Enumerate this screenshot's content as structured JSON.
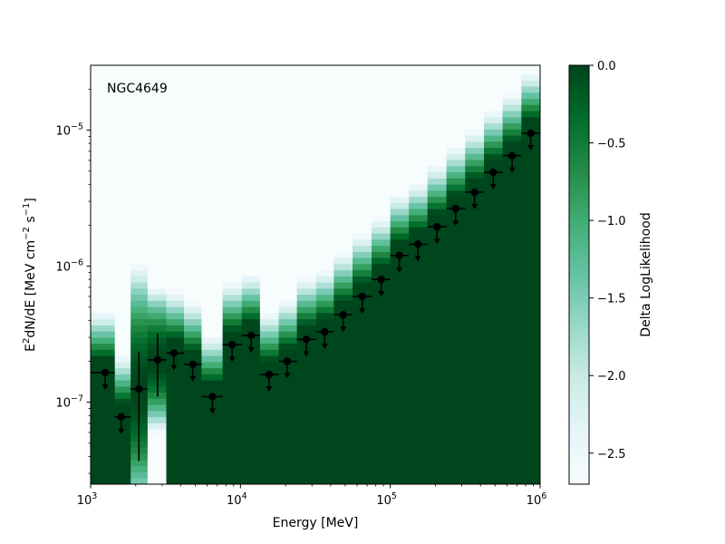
{
  "chart_data": {
    "type": "scatter",
    "title": "",
    "annotation": "NGC4649",
    "xlabel": "Energy [MeV]",
    "ylabel": "E$^2$dN/dE [MeV cm$^{-2}$ s$^{-1}$]",
    "xscale": "log",
    "yscale": "log",
    "xlim": [
      1000,
      1000000
    ],
    "ylim": [
      2.5e-08,
      3e-05
    ],
    "x_ticks": [
      {
        "value": 1000,
        "base": "10",
        "exp": "3"
      },
      {
        "value": 10000,
        "base": "10",
        "exp": "4"
      },
      {
        "value": 100000,
        "base": "10",
        "exp": "5"
      },
      {
        "value": 1000000,
        "base": "10",
        "exp": "6"
      }
    ],
    "y_ticks": [
      {
        "value": 1e-07,
        "base": "10",
        "exp": "−7"
      },
      {
        "value": 1e-06,
        "base": "10",
        "exp": "−6"
      },
      {
        "value": 1e-05,
        "base": "10",
        "exp": "−5"
      }
    ],
    "colorbar": {
      "label": "Delta LogLikelihood",
      "range": [
        -2.7,
        0.0
      ],
      "ticks": [
        "0.0",
        "−0.5",
        "−1.0",
        "−1.5",
        "−2.0",
        "−2.5"
      ],
      "tick_values": [
        0.0,
        -0.5,
        -1.0,
        -1.5,
        -2.0,
        -2.5
      ],
      "cmap": [
        "#f7fcfd",
        "#e5f5f9",
        "#ccece6",
        "#99d8c9",
        "#66c2a4",
        "#41ae76",
        "#238b45",
        "#006d2c",
        "#00441b"
      ]
    },
    "points": [
      {
        "x": 1250,
        "y": 1.65e-07,
        "type": "ul",
        "xlo": 1000,
        "xhi": 1450
      },
      {
        "x": 1600,
        "y": 7.8e-08,
        "type": "ul",
        "xlo": 1450,
        "xhi": 1850
      },
      {
        "x": 2100,
        "y": 1.25e-07,
        "type": "measurement",
        "ylo": 3.7e-08,
        "yhi": 2.35e-07,
        "xlo": 1850,
        "xhi": 2400
      },
      {
        "x": 2800,
        "y": 2.05e-07,
        "type": "measurement",
        "ylo": 1.1e-07,
        "yhi": 3.2e-07,
        "xlo": 2400,
        "xhi": 3200
      },
      {
        "x": 3600,
        "y": 2.3e-07,
        "type": "ul",
        "xlo": 3200,
        "xhi": 4200
      },
      {
        "x": 4800,
        "y": 1.9e-07,
        "type": "ul",
        "xlo": 4200,
        "xhi": 5500
      },
      {
        "x": 6500,
        "y": 1.1e-07,
        "type": "ul",
        "xlo": 5500,
        "xhi": 7600
      },
      {
        "x": 8800,
        "y": 2.65e-07,
        "type": "ul",
        "xlo": 7600,
        "xhi": 10200
      },
      {
        "x": 11800,
        "y": 3.1e-07,
        "type": "ul",
        "xlo": 10200,
        "xhi": 13500
      },
      {
        "x": 15500,
        "y": 1.6e-07,
        "type": "ul",
        "xlo": 13500,
        "xhi": 18000
      },
      {
        "x": 20500,
        "y": 2e-07,
        "type": "ul",
        "xlo": 18000,
        "xhi": 23800
      },
      {
        "x": 27500,
        "y": 2.9e-07,
        "type": "ul",
        "xlo": 23800,
        "xhi": 32000
      },
      {
        "x": 36500,
        "y": 3.3e-07,
        "type": "ul",
        "xlo": 32000,
        "xhi": 42000
      },
      {
        "x": 48500,
        "y": 4.4e-07,
        "type": "ul",
        "xlo": 42000,
        "xhi": 56000
      },
      {
        "x": 65000,
        "y": 6e-07,
        "type": "ul",
        "xlo": 56000,
        "xhi": 75000
      },
      {
        "x": 87000,
        "y": 8e-07,
        "type": "ul",
        "xlo": 75000,
        "xhi": 100000
      },
      {
        "x": 115000,
        "y": 1.2e-06,
        "type": "ul",
        "xlo": 100000,
        "xhi": 133000
      },
      {
        "x": 153000,
        "y": 1.45e-06,
        "type": "ul",
        "xlo": 133000,
        "xhi": 177000
      },
      {
        "x": 205000,
        "y": 1.95e-06,
        "type": "ul",
        "xlo": 177000,
        "xhi": 237000
      },
      {
        "x": 273000,
        "y": 2.65e-06,
        "type": "ul",
        "xlo": 237000,
        "xhi": 316000
      },
      {
        "x": 365000,
        "y": 3.5e-06,
        "type": "ul",
        "xlo": 316000,
        "xhi": 422000
      },
      {
        "x": 487000,
        "y": 4.9e-06,
        "type": "ul",
        "xlo": 422000,
        "xhi": 562000
      },
      {
        "x": 650000,
        "y": 6.5e-06,
        "type": "ul",
        "xlo": 562000,
        "xhi": 750000
      },
      {
        "x": 865000,
        "y": 9.5e-06,
        "type": "ul",
        "xlo": 750000,
        "xhi": 1000000
      }
    ]
  }
}
